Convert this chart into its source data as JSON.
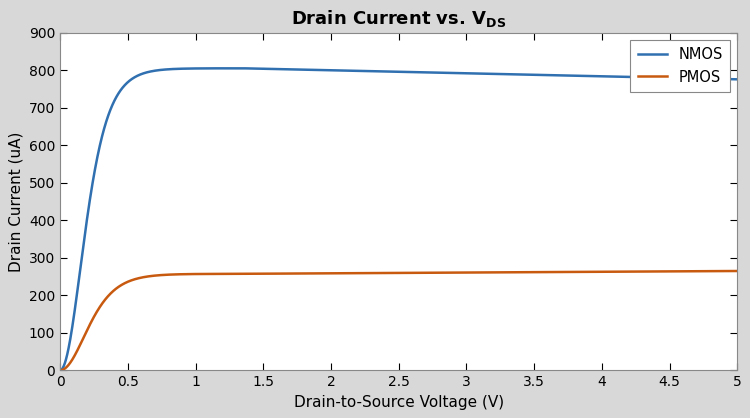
{
  "title": "Drain Current vs. V",
  "title_sub": "DS",
  "xlabel": "Drain-to-Source Voltage (V)",
  "ylabel": "Drain Current (uA)",
  "xlim": [
    0,
    5
  ],
  "ylim": [
    0,
    900
  ],
  "xticks": [
    0,
    0.5,
    1.0,
    1.5,
    2.0,
    2.5,
    3.0,
    3.5,
    4.0,
    4.5,
    5.0
  ],
  "yticks": [
    0,
    100,
    200,
    300,
    400,
    500,
    600,
    700,
    800,
    900
  ],
  "nmos_color": "#3070B0",
  "pmos_color": "#C85A10",
  "figure_bg_color": "#D8D8D8",
  "plot_bg_color": "#FFFFFF",
  "legend_labels": [
    "NMOS",
    "PMOS"
  ],
  "linewidth": 1.8,
  "figsize": [
    7.5,
    4.18
  ],
  "dpi": 100,
  "nmos_Idss": 805,
  "nmos_Vp": 1.35,
  "nmos_lambda": 0.01,
  "nmos_alpha": 6.0,
  "pmos_Idss": 257,
  "pmos_Vp": 1.3,
  "pmos_lambda": 0.008,
  "pmos_alpha": 5.0
}
